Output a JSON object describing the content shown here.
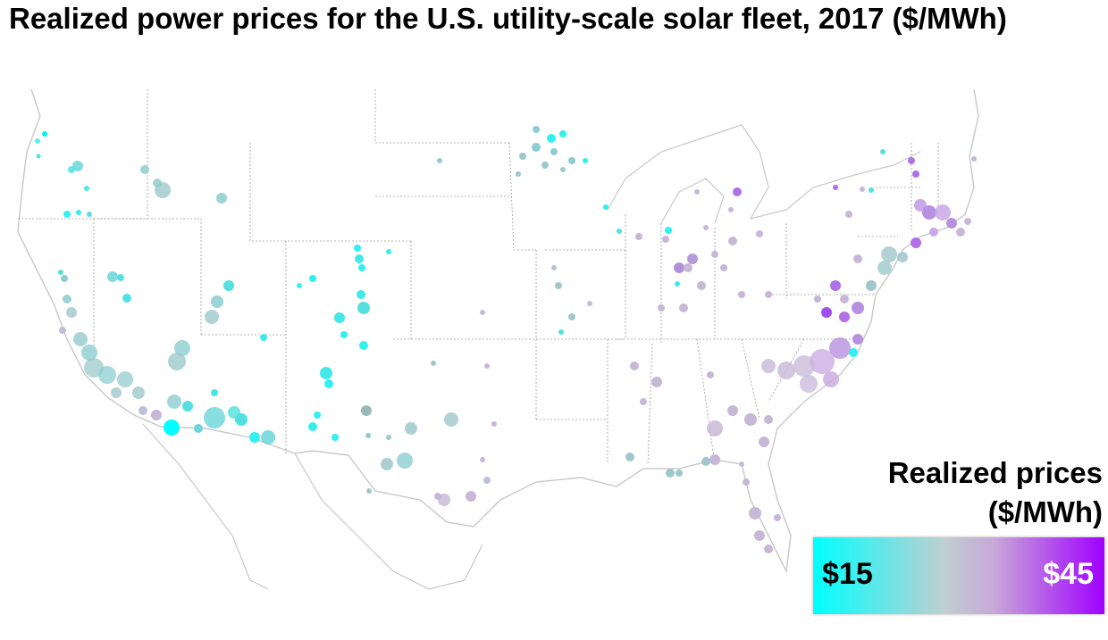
{
  "title": "Realized power prices for the U.S. utility-scale solar fleet, 2017 ($/MWh)",
  "legend": {
    "title_line1": "Realized prices",
    "title_line2": "($/MWh)",
    "min_label": "$15",
    "max_label": "$45",
    "min_value": 15,
    "max_value": 45,
    "color_min": "#00ffff",
    "color_mid": "#bcd0d0",
    "color_max": "#a000ff"
  },
  "map": {
    "region": "Contiguous United States",
    "outline_color": "#c8c8c8",
    "boundary_color": "#9a9a9a"
  }
}
